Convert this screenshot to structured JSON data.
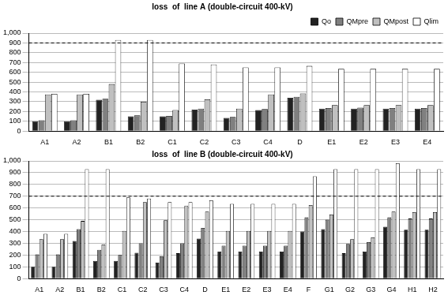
{
  "chart_data": [
    {
      "type": "bar",
      "title": "loss  of  line A (double-circuit 400-kV)",
      "categories": [
        "A1",
        "A2",
        "B1",
        "B2",
        "C1",
        "C2",
        "C3",
        "C4",
        "D",
        "E1",
        "E2",
        "E3",
        "E4"
      ],
      "series": [
        {
          "name": "Qo",
          "color": "#222222",
          "values": [
            100,
            100,
            320,
            150,
            150,
            220,
            135,
            215,
            340,
            230,
            230,
            230,
            230
          ]
        },
        {
          "name": "QMpre",
          "color": "#808080",
          "values": [
            110,
            110,
            330,
            160,
            155,
            230,
            145,
            225,
            350,
            235,
            240,
            235,
            235
          ]
        },
        {
          "name": "QMpost",
          "color": "#c0c0c0",
          "values": [
            375,
            375,
            480,
            300,
            215,
            325,
            230,
            375,
            385,
            265,
            265,
            265,
            265
          ]
        },
        {
          "name": "Qlim",
          "color": "#ffffff",
          "values": [
            380,
            380,
            930,
            930,
            690,
            680,
            650,
            650,
            665,
            635,
            635,
            635,
            635
          ]
        }
      ],
      "ylim": [
        0,
        1000
      ],
      "yticks": [
        0,
        100,
        200,
        300,
        400,
        500,
        600,
        700,
        800,
        900,
        1000
      ],
      "grid": true,
      "legend": "upper right",
      "threshold": 900
    },
    {
      "type": "bar",
      "title": "loss  of  line B (double-circuit 400-kV)",
      "categories": [
        "A1",
        "A2",
        "B1",
        "B2",
        "C1",
        "C2",
        "C3",
        "C4",
        "D",
        "E1",
        "E2",
        "E3",
        "E4",
        "F",
        "G1",
        "G2",
        "G3",
        "G4",
        "H1",
        "H2"
      ],
      "series": [
        {
          "name": "Qo",
          "color": "#222222",
          "values": [
            100,
            100,
            320,
            150,
            150,
            220,
            135,
            215,
            340,
            230,
            230,
            230,
            230,
            400,
            420,
            215,
            230,
            440,
            415,
            415
          ]
        },
        {
          "name": "QMpre",
          "color": "#808080",
          "values": [
            205,
            205,
            420,
            245,
            200,
            300,
            190,
            300,
            430,
            280,
            280,
            280,
            280,
            520,
            500,
            295,
            310,
            520,
            510,
            510
          ]
        },
        {
          "name": "QMpost",
          "color": "#c0c0c0",
          "values": [
            335,
            335,
            490,
            290,
            405,
            650,
            495,
            620,
            570,
            405,
            405,
            405,
            405,
            625,
            545,
            335,
            350,
            570,
            565,
            565
          ]
        },
        {
          "name": "Qlim",
          "color": "#ffffff",
          "values": [
            380,
            380,
            930,
            930,
            690,
            680,
            650,
            650,
            665,
            635,
            635,
            635,
            635,
            870,
            930,
            930,
            930,
            980,
            930,
            930
          ]
        }
      ],
      "ylim": [
        0,
        1000
      ],
      "yticks": [
        0,
        100,
        200,
        300,
        400,
        500,
        600,
        700,
        800,
        900,
        1000
      ],
      "grid": true,
      "threshold": 700
    }
  ]
}
